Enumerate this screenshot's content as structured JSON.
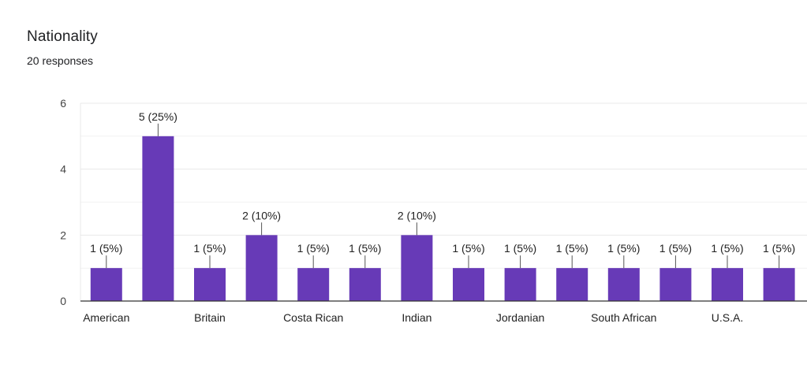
{
  "question": {
    "title": "Nationality",
    "responses": "20 responses"
  },
  "colors": {
    "bar": "#673ab7",
    "grid": "#e8e8e8",
    "axis": "#333333",
    "leader": "#555555"
  },
  "chart_data": {
    "type": "bar",
    "categories": [
      "American",
      "",
      "Britain",
      "",
      "Costa Rican",
      "",
      "Indian",
      "",
      "Jordanian",
      "",
      "South African",
      "",
      "U.S.A.",
      ""
    ],
    "values": [
      1,
      5,
      1,
      2,
      1,
      1,
      2,
      1,
      1,
      1,
      1,
      1,
      1,
      1
    ],
    "data_labels": [
      "1 (5%)",
      "5 (25%)",
      "1 (5%)",
      "2 (10%)",
      "1 (5%)",
      "1 (5%)",
      "2 (10%)",
      "1 (5%)",
      "1 (5%)",
      "1 (5%)",
      "1 (5%)",
      "1 (5%)",
      "1 (5%)",
      "1 (5%)"
    ],
    "y_ticks": [
      0,
      2,
      4,
      6
    ],
    "ylim": [
      0,
      6
    ],
    "title": "Nationality",
    "subtitle": "20 responses",
    "xlabel": "",
    "ylabel": "",
    "grid": true,
    "legend": "none"
  }
}
